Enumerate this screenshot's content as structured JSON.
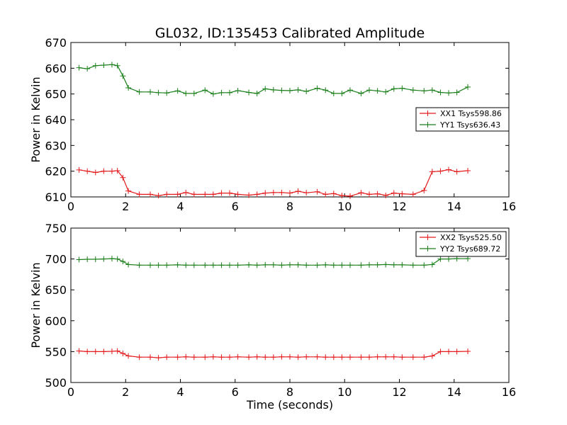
{
  "figure": {
    "title": "GL032, ID:135453 Calibrated Amplitude"
  },
  "colors": {
    "xx": "#e31a1c",
    "yy": "#1a7f1a"
  },
  "chart_data": [
    {
      "type": "line",
      "title": "GL032, ID:135453 Calibrated Amplitude",
      "xlabel": "",
      "ylabel": "Power in Kelvin",
      "xlim": [
        0,
        16
      ],
      "ylim": [
        610,
        670
      ],
      "xticks": [
        0,
        2,
        4,
        6,
        8,
        10,
        12,
        14,
        16
      ],
      "yticks": [
        610,
        620,
        630,
        640,
        650,
        660,
        670
      ],
      "grid": false,
      "legend_position": "center-right",
      "marker": "+",
      "x": [
        0.3,
        0.6,
        0.9,
        1.2,
        1.5,
        1.7,
        1.9,
        2.1,
        2.5,
        2.9,
        3.2,
        3.5,
        3.9,
        4.2,
        4.5,
        4.9,
        5.2,
        5.5,
        5.8,
        6.1,
        6.5,
        6.8,
        7.1,
        7.4,
        7.7,
        8.0,
        8.3,
        8.6,
        9.0,
        9.3,
        9.6,
        9.9,
        10.2,
        10.6,
        10.9,
        11.2,
        11.5,
        11.8,
        12.1,
        12.5,
        12.9,
        13.2,
        13.5,
        13.8,
        14.1,
        14.5
      ],
      "series": [
        {
          "name": "XX1 Tsys598.86",
          "color_key": "xx",
          "values": [
            620.5,
            620,
            619.5,
            620,
            620,
            620.2,
            617.5,
            612.3,
            611,
            611,
            610.5,
            611,
            611,
            611.7,
            611,
            611,
            611,
            611.5,
            611.5,
            611,
            610.7,
            611,
            611.5,
            611.7,
            611.7,
            611.5,
            612.2,
            611.6,
            612,
            611,
            611.3,
            610.5,
            610.3,
            611.6,
            611,
            611.2,
            610.6,
            611.5,
            611.2,
            611,
            612.5,
            619.8,
            620,
            620.6,
            619.8,
            620.2
          ]
        },
        {
          "name": "YY1 Tsys636.43",
          "color_key": "yy",
          "values": [
            660.2,
            659.8,
            661,
            661.2,
            661.4,
            661,
            657,
            652.4,
            650.8,
            650.8,
            650.5,
            650.4,
            651.2,
            650.2,
            650.2,
            651.5,
            650,
            650.5,
            650.5,
            651.3,
            650.6,
            650.2,
            652,
            651.6,
            651.4,
            651.3,
            651.6,
            651,
            652.2,
            651.5,
            650.2,
            650.2,
            651.5,
            650.2,
            651.5,
            651.2,
            650.8,
            652,
            652.2,
            651.5,
            651.2,
            651.5,
            650.6,
            650.4,
            650.6,
            652.7
          ]
        }
      ]
    },
    {
      "type": "line",
      "title": "",
      "xlabel": "Time (seconds)",
      "ylabel": "Power in Kelvin",
      "xlim": [
        0,
        16
      ],
      "ylim": [
        500,
        750
      ],
      "xticks": [
        0,
        2,
        4,
        6,
        8,
        10,
        12,
        14,
        16
      ],
      "yticks": [
        500,
        550,
        600,
        650,
        700,
        750
      ],
      "grid": false,
      "legend_position": "top-right",
      "marker": "+",
      "x": [
        0.3,
        0.6,
        0.9,
        1.2,
        1.5,
        1.7,
        1.9,
        2.1,
        2.5,
        2.9,
        3.2,
        3.5,
        3.9,
        4.2,
        4.5,
        4.9,
        5.2,
        5.5,
        5.8,
        6.1,
        6.5,
        6.8,
        7.1,
        7.4,
        7.7,
        8.0,
        8.3,
        8.6,
        9.0,
        9.3,
        9.6,
        9.9,
        10.2,
        10.6,
        10.9,
        11.2,
        11.5,
        11.8,
        12.1,
        12.5,
        12.9,
        13.2,
        13.5,
        13.8,
        14.1,
        14.5
      ],
      "series": [
        {
          "name": "XX2 Tsys525.50",
          "color_key": "xx",
          "values": [
            551,
            550,
            550,
            550,
            550.5,
            551,
            547,
            543,
            541,
            541,
            540,
            541,
            541,
            541.5,
            541,
            541,
            541.5,
            541,
            541,
            541.5,
            541,
            541.5,
            541,
            541,
            541.5,
            541.5,
            541,
            541.5,
            541.5,
            541,
            541,
            541,
            541,
            541,
            541,
            541.5,
            541.5,
            541.5,
            541,
            541,
            541,
            543,
            550,
            550,
            550,
            550.5
          ]
        },
        {
          "name": "YY2 Tsys689.72",
          "color_key": "yy",
          "values": [
            699,
            699.5,
            699.5,
            700,
            700.5,
            700,
            696,
            691,
            690,
            690,
            690,
            690,
            690.5,
            690,
            690,
            690,
            690,
            690,
            690,
            690,
            690.5,
            690,
            690.5,
            690.5,
            690,
            690.5,
            690.5,
            690,
            690,
            690.5,
            690,
            690,
            690,
            690,
            690.5,
            690.5,
            691,
            690.5,
            690.5,
            690,
            690,
            691,
            700,
            700,
            700.5,
            700.5
          ]
        }
      ]
    }
  ]
}
